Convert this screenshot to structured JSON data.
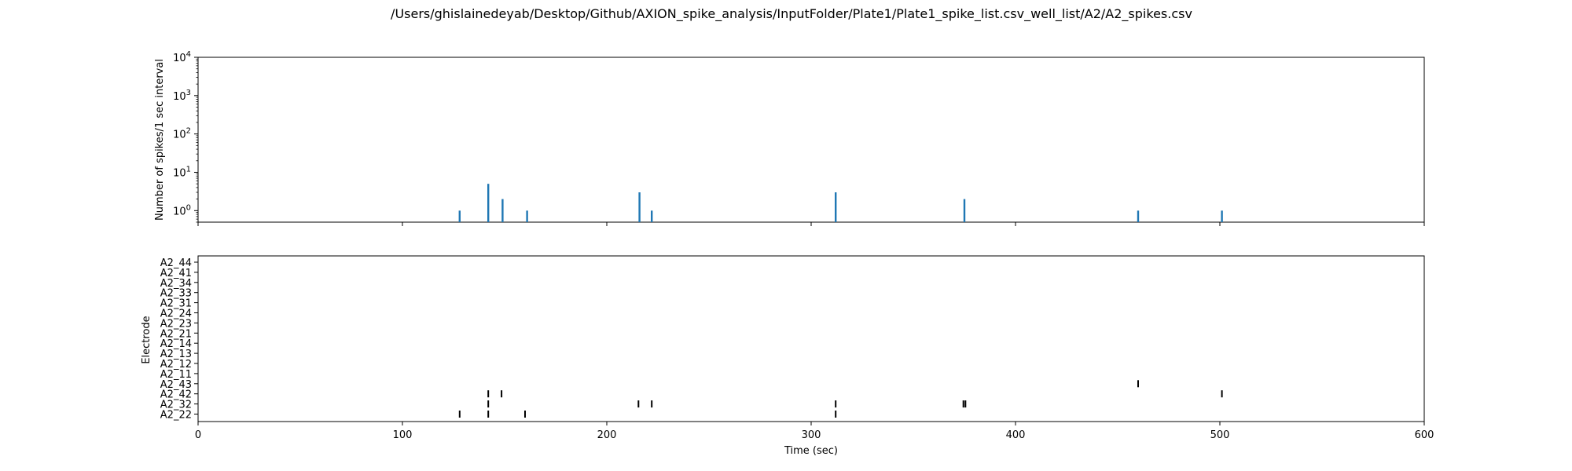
{
  "chart_data": [
    {
      "type": "bar",
      "title": "/Users/ghislainedeyab/Desktop/Github/AXION_spike_analysis/InputFolder/Plate1/Plate1_spike_list.csv_well_list/A2/A2_spikes.csv",
      "xlabel": "",
      "ylabel": "Number of spikes/1 sec interval",
      "yscale": "log",
      "xlim": [
        0,
        600
      ],
      "ylim": [
        0.5,
        10000
      ],
      "ytick_labels": [
        {
          "base": "10",
          "exp": "0"
        },
        {
          "base": "10",
          "exp": "1"
        },
        {
          "base": "10",
          "exp": "2"
        },
        {
          "base": "10",
          "exp": "3"
        },
        {
          "base": "10",
          "exp": "4"
        }
      ],
      "bar_color": "#1f77b4",
      "bars": [
        {
          "x": 128,
          "y": 1
        },
        {
          "x": 142,
          "y": 5
        },
        {
          "x": 149,
          "y": 2
        },
        {
          "x": 161,
          "y": 1
        },
        {
          "x": 216,
          "y": 3
        },
        {
          "x": 222,
          "y": 1
        },
        {
          "x": 312,
          "y": 3
        },
        {
          "x": 375,
          "y": 2
        },
        {
          "x": 460,
          "y": 1
        },
        {
          "x": 501,
          "y": 1
        }
      ]
    },
    {
      "type": "scatter",
      "marker": "|",
      "xlabel": "Time (sec)",
      "ylabel": "Electrode",
      "xlim": [
        0,
        600
      ],
      "xticks": [
        "0",
        "100",
        "200",
        "300",
        "400",
        "500",
        "600"
      ],
      "categories": [
        "A2_22",
        "A2_32",
        "A2_42",
        "A2_43",
        "A2_11",
        "A2_12",
        "A2_13",
        "A2_14",
        "A2_21",
        "A2_23",
        "A2_24",
        "A2_31",
        "A2_33",
        "A2_34",
        "A2_41",
        "A2_44"
      ],
      "event_color": "#000000",
      "events": [
        {
          "electrode": "A2_22",
          "times": [
            128,
            142,
            160,
            312
          ]
        },
        {
          "electrode": "A2_32",
          "times": [
            142,
            215.5,
            222,
            312,
            374.5,
            375.5
          ]
        },
        {
          "electrode": "A2_42",
          "times": [
            142,
            148.5,
            501
          ]
        },
        {
          "electrode": "A2_43",
          "times": [
            460
          ]
        }
      ]
    }
  ]
}
